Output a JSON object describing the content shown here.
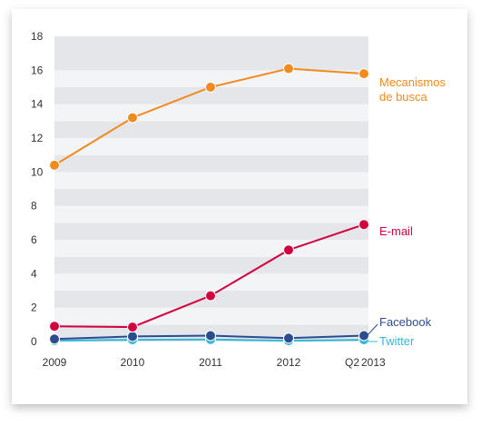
{
  "chart_data": {
    "type": "line",
    "x": [
      "2009",
      "2010",
      "2011",
      "2012",
      "Q2 2013"
    ],
    "x_tick_labels": [
      "2009",
      "2010",
      "2011",
      "2012",
      "Q2"
    ],
    "x_tick_suffix": "2013",
    "y_ticks": [
      "0",
      "2",
      "4",
      "6",
      "8",
      "10",
      "12",
      "14",
      "16",
      "18"
    ],
    "ylim": [
      0,
      18
    ],
    "grid": "horizontal bands",
    "legend": "inline labels at right end of lines",
    "series": [
      {
        "name_lines": [
          "Mecanismos",
          "de busca"
        ],
        "color": "#f28a1e",
        "values": [
          10.4,
          13.2,
          15.0,
          16.1,
          15.8
        ]
      },
      {
        "name_lines": [
          "E-mail"
        ],
        "color": "#d3003f",
        "values": [
          0.9,
          0.85,
          2.7,
          5.4,
          6.9
        ]
      },
      {
        "name_lines": [
          "Facebook"
        ],
        "color": "#2b4d8f",
        "values": [
          0.15,
          0.3,
          0.35,
          0.2,
          0.35
        ]
      },
      {
        "name_lines": [
          "Twitter"
        ],
        "color": "#34b7d9",
        "values": [
          0.05,
          0.1,
          0.12,
          0.05,
          0.1
        ]
      }
    ]
  }
}
